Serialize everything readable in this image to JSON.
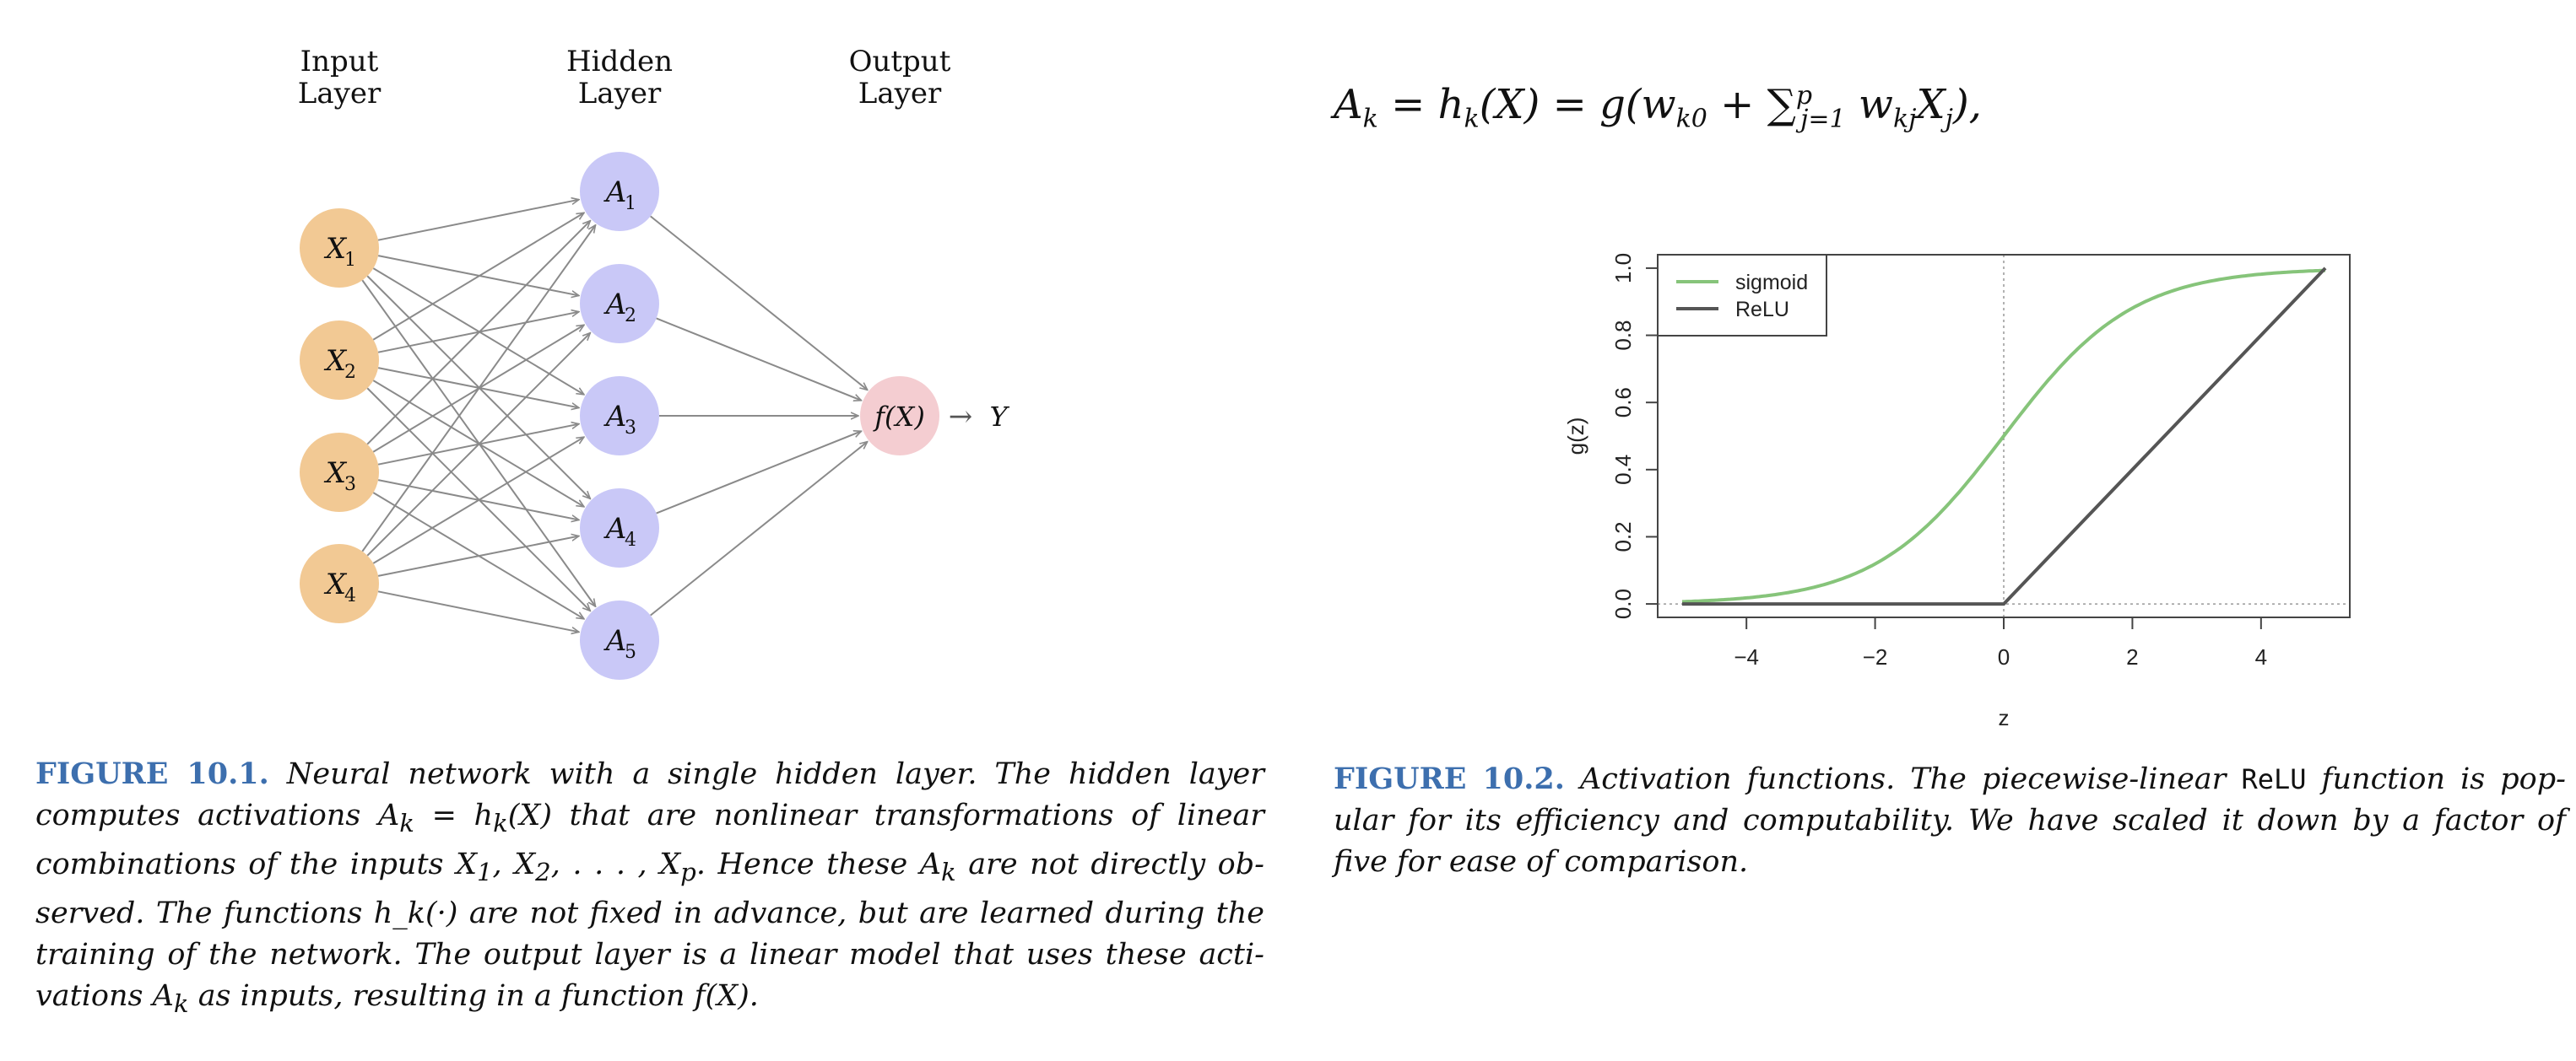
{
  "figure1": {
    "labels": {
      "input": [
        "Input",
        "Layer"
      ],
      "hidden": [
        "Hidden",
        "Layer"
      ],
      "output": [
        "Output",
        "Layer"
      ]
    },
    "inputs": [
      "X",
      "X",
      "X",
      "X"
    ],
    "input_subs": [
      "1",
      "2",
      "3",
      "4"
    ],
    "hidden": [
      "A",
      "A",
      "A",
      "A",
      "A"
    ],
    "hidden_subs": [
      "1",
      "2",
      "3",
      "4",
      "5"
    ],
    "output_node": "f(X)",
    "arrow": "→",
    "output_y": "Y",
    "colors": {
      "input": "#f2c994",
      "hidden": "#c9c8f7",
      "output": "#f4cdd1",
      "edge": "#8a8a8a"
    },
    "caption": {
      "label": "FIGURE 10.1.",
      "lines": [
        "Neural network with a single hidden layer. The hidden layer",
        "computes activations A_k = h_k(X) that are nonlinear transformations of linear",
        "combinations of the inputs X_1, X_2, . . . , X_p. Hence these A_k are not directly ob-",
        "served. The functions h_k(·) are not fixed in advance, but are learned during the",
        "training of the network. The output layer is a linear model that uses these acti-",
        "vations A_k as inputs, resulting in a function f(X)."
      ]
    }
  },
  "equation": "A_k = h_k(X) = g(w_k0 + Σ_{j=1}^p w_kj X_j),",
  "chart_data": {
    "type": "line",
    "xlabel": "z",
    "ylabel": "g(z)",
    "xlim": [
      -5,
      5
    ],
    "ylim": [
      0,
      1
    ],
    "xticks": [
      "−4",
      "−2",
      "0",
      "2",
      "4"
    ],
    "yticks": [
      "0.0",
      "0.2",
      "0.4",
      "0.6",
      "0.8",
      "1.0"
    ],
    "legend": "top-left",
    "series": [
      {
        "name": "sigmoid",
        "color": "#86c47a",
        "function": "1/(1+exp(-z))",
        "x": [
          -5,
          -4,
          -3,
          -2,
          -1,
          0,
          1,
          2,
          3,
          4,
          5
        ],
        "y": [
          0.007,
          0.018,
          0.047,
          0.119,
          0.269,
          0.5,
          0.731,
          0.881,
          0.953,
          0.982,
          0.993
        ]
      },
      {
        "name": "ReLU",
        "color": "#555555",
        "function": "max(0,z)/5",
        "x": [
          -5,
          0,
          5
        ],
        "y": [
          0,
          0,
          1
        ]
      }
    ]
  },
  "figure2": {
    "caption": {
      "label": "FIGURE 10.2.",
      "line1_pre": "Activation functions. The piecewise-linear",
      "line1_mono": "ReLU",
      "line1_post": "function is pop-",
      "line2": "ular for its efficiency and computability. We have scaled it down by a factor of",
      "line3": "five for ease of comparison."
    }
  }
}
